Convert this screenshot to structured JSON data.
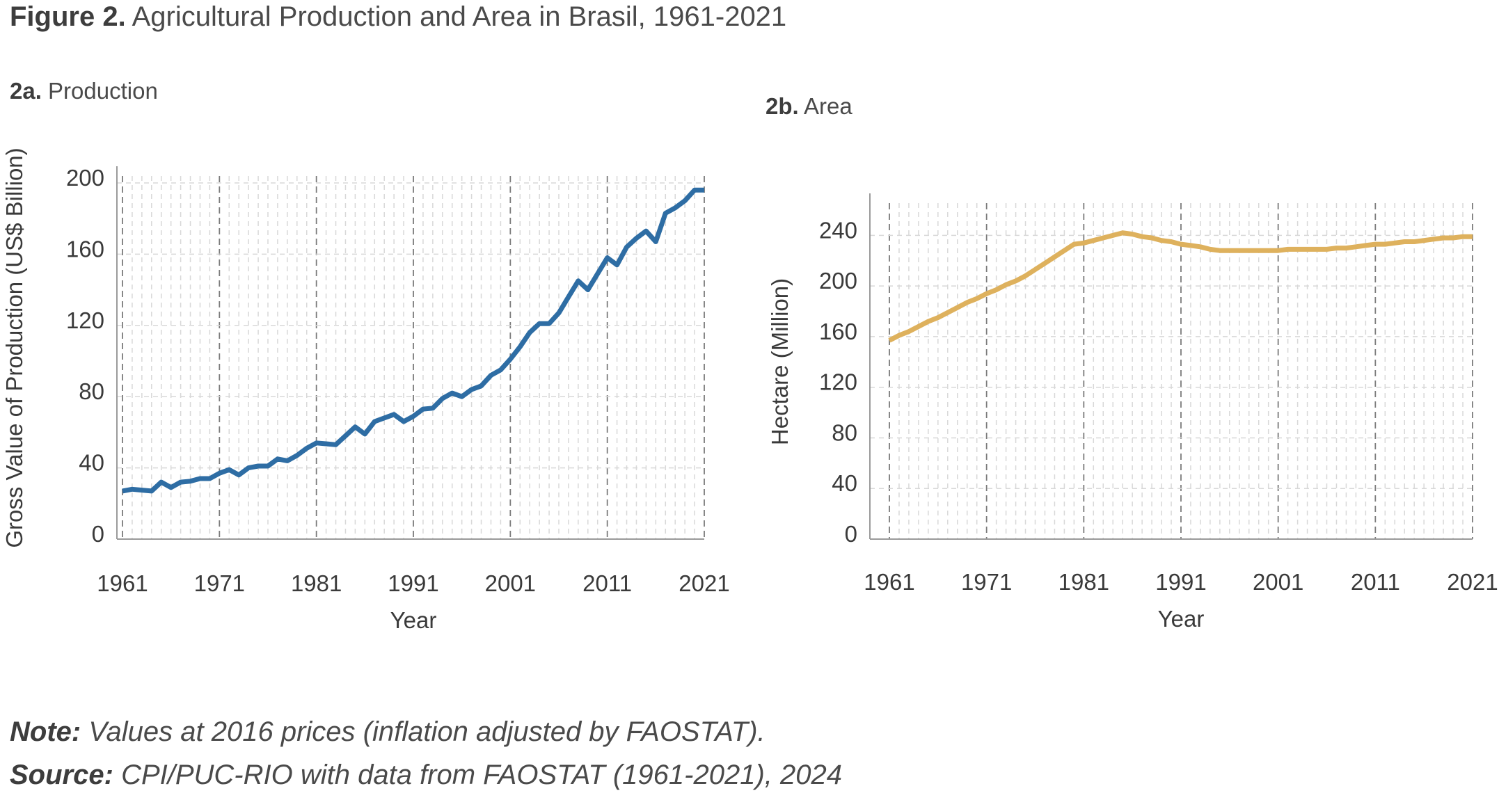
{
  "figure": {
    "title_prefix": "Figure 2.",
    "title": "Agricultural Production and Area in Brasil, 1961-2021"
  },
  "note": {
    "label": "Note:",
    "text": "Values at 2016 prices (inflation adjusted by FAOSTAT)."
  },
  "source": {
    "label": "Source:",
    "text": "CPI/PUC-RIO with data from FAOSTAT (1961-2021), 2024"
  },
  "chart_data": [
    {
      "type": "line",
      "panel": "2a.",
      "title": "Production",
      "xlabel": "Year",
      "ylabel": "Gross Value of Production (US$ Billion)",
      "xlim": [
        1961,
        2021
      ],
      "ylim": [
        0,
        200
      ],
      "xticks": [
        1961,
        1971,
        1981,
        1991,
        2001,
        2011,
        2021
      ],
      "yticks": [
        0,
        40,
        80,
        120,
        160,
        200
      ],
      "grid": true,
      "color": "#2e6da4",
      "series": [
        {
          "x": [
            1961,
            1962,
            1963,
            1964,
            1965,
            1966,
            1967,
            1968,
            1969,
            1970,
            1971,
            1972,
            1973,
            1974,
            1975,
            1976,
            1977,
            1978,
            1979,
            1980,
            1981,
            1982,
            1983,
            1984,
            1985,
            1986,
            1987,
            1988,
            1989,
            1990,
            1991,
            1992,
            1993,
            1994,
            1995,
            1996,
            1997,
            1998,
            1999,
            2000,
            2001,
            2002,
            2003,
            2004,
            2005,
            2006,
            2007,
            2008,
            2009,
            2010,
            2011,
            2012,
            2013,
            2014,
            2015,
            2016,
            2017,
            2018,
            2019,
            2020,
            2021
          ],
          "values": [
            27,
            28,
            27.5,
            27,
            32,
            29,
            32,
            32.5,
            34,
            34,
            37,
            39,
            36,
            40,
            41,
            41,
            45,
            44,
            47,
            51,
            54,
            53.5,
            53,
            58,
            63,
            59,
            66,
            68,
            70,
            66,
            69,
            73,
            73.5,
            79,
            82,
            80,
            84,
            86,
            92,
            95,
            101,
            108,
            116,
            121,
            121,
            127,
            136,
            145,
            140,
            149,
            158,
            154,
            164,
            169,
            173,
            167,
            183,
            186,
            190,
            196,
            196
          ]
        }
      ]
    },
    {
      "type": "line",
      "panel": "2b.",
      "title": "Area",
      "xlabel": "Year",
      "ylabel": "Hectare (Million)",
      "xlim": [
        1961,
        2021
      ],
      "ylim": [
        0,
        260
      ],
      "xticks": [
        1961,
        1971,
        1981,
        1991,
        2001,
        2011,
        2021
      ],
      "yticks": [
        0,
        40,
        80,
        120,
        160,
        200,
        240
      ],
      "grid": true,
      "color": "#deb15d",
      "series": [
        {
          "x": [
            1961,
            1962,
            1963,
            1964,
            1965,
            1966,
            1967,
            1968,
            1969,
            1970,
            1971,
            1972,
            1973,
            1974,
            1975,
            1976,
            1977,
            1978,
            1979,
            1980,
            1981,
            1982,
            1983,
            1984,
            1985,
            1986,
            1987,
            1988,
            1989,
            1990,
            1991,
            1992,
            1993,
            1994,
            1995,
            1996,
            1997,
            1998,
            1999,
            2000,
            2001,
            2002,
            2003,
            2004,
            2005,
            2006,
            2007,
            2008,
            2009,
            2010,
            2011,
            2012,
            2013,
            2014,
            2015,
            2016,
            2017,
            2018,
            2019,
            2020,
            2021
          ],
          "values": [
            157,
            161,
            164,
            168,
            172,
            175,
            179,
            183,
            187,
            190,
            194,
            197,
            201,
            204,
            208,
            213,
            218,
            223,
            228,
            233,
            234,
            236,
            238,
            240,
            242,
            241,
            239,
            238,
            236,
            235,
            233,
            232,
            231,
            229,
            228,
            228,
            228,
            228,
            228,
            228,
            228,
            229,
            229,
            229,
            229,
            229,
            230,
            230,
            231,
            232,
            233,
            233,
            234,
            235,
            235,
            236,
            237,
            238,
            238,
            239,
            239
          ]
        }
      ]
    }
  ]
}
